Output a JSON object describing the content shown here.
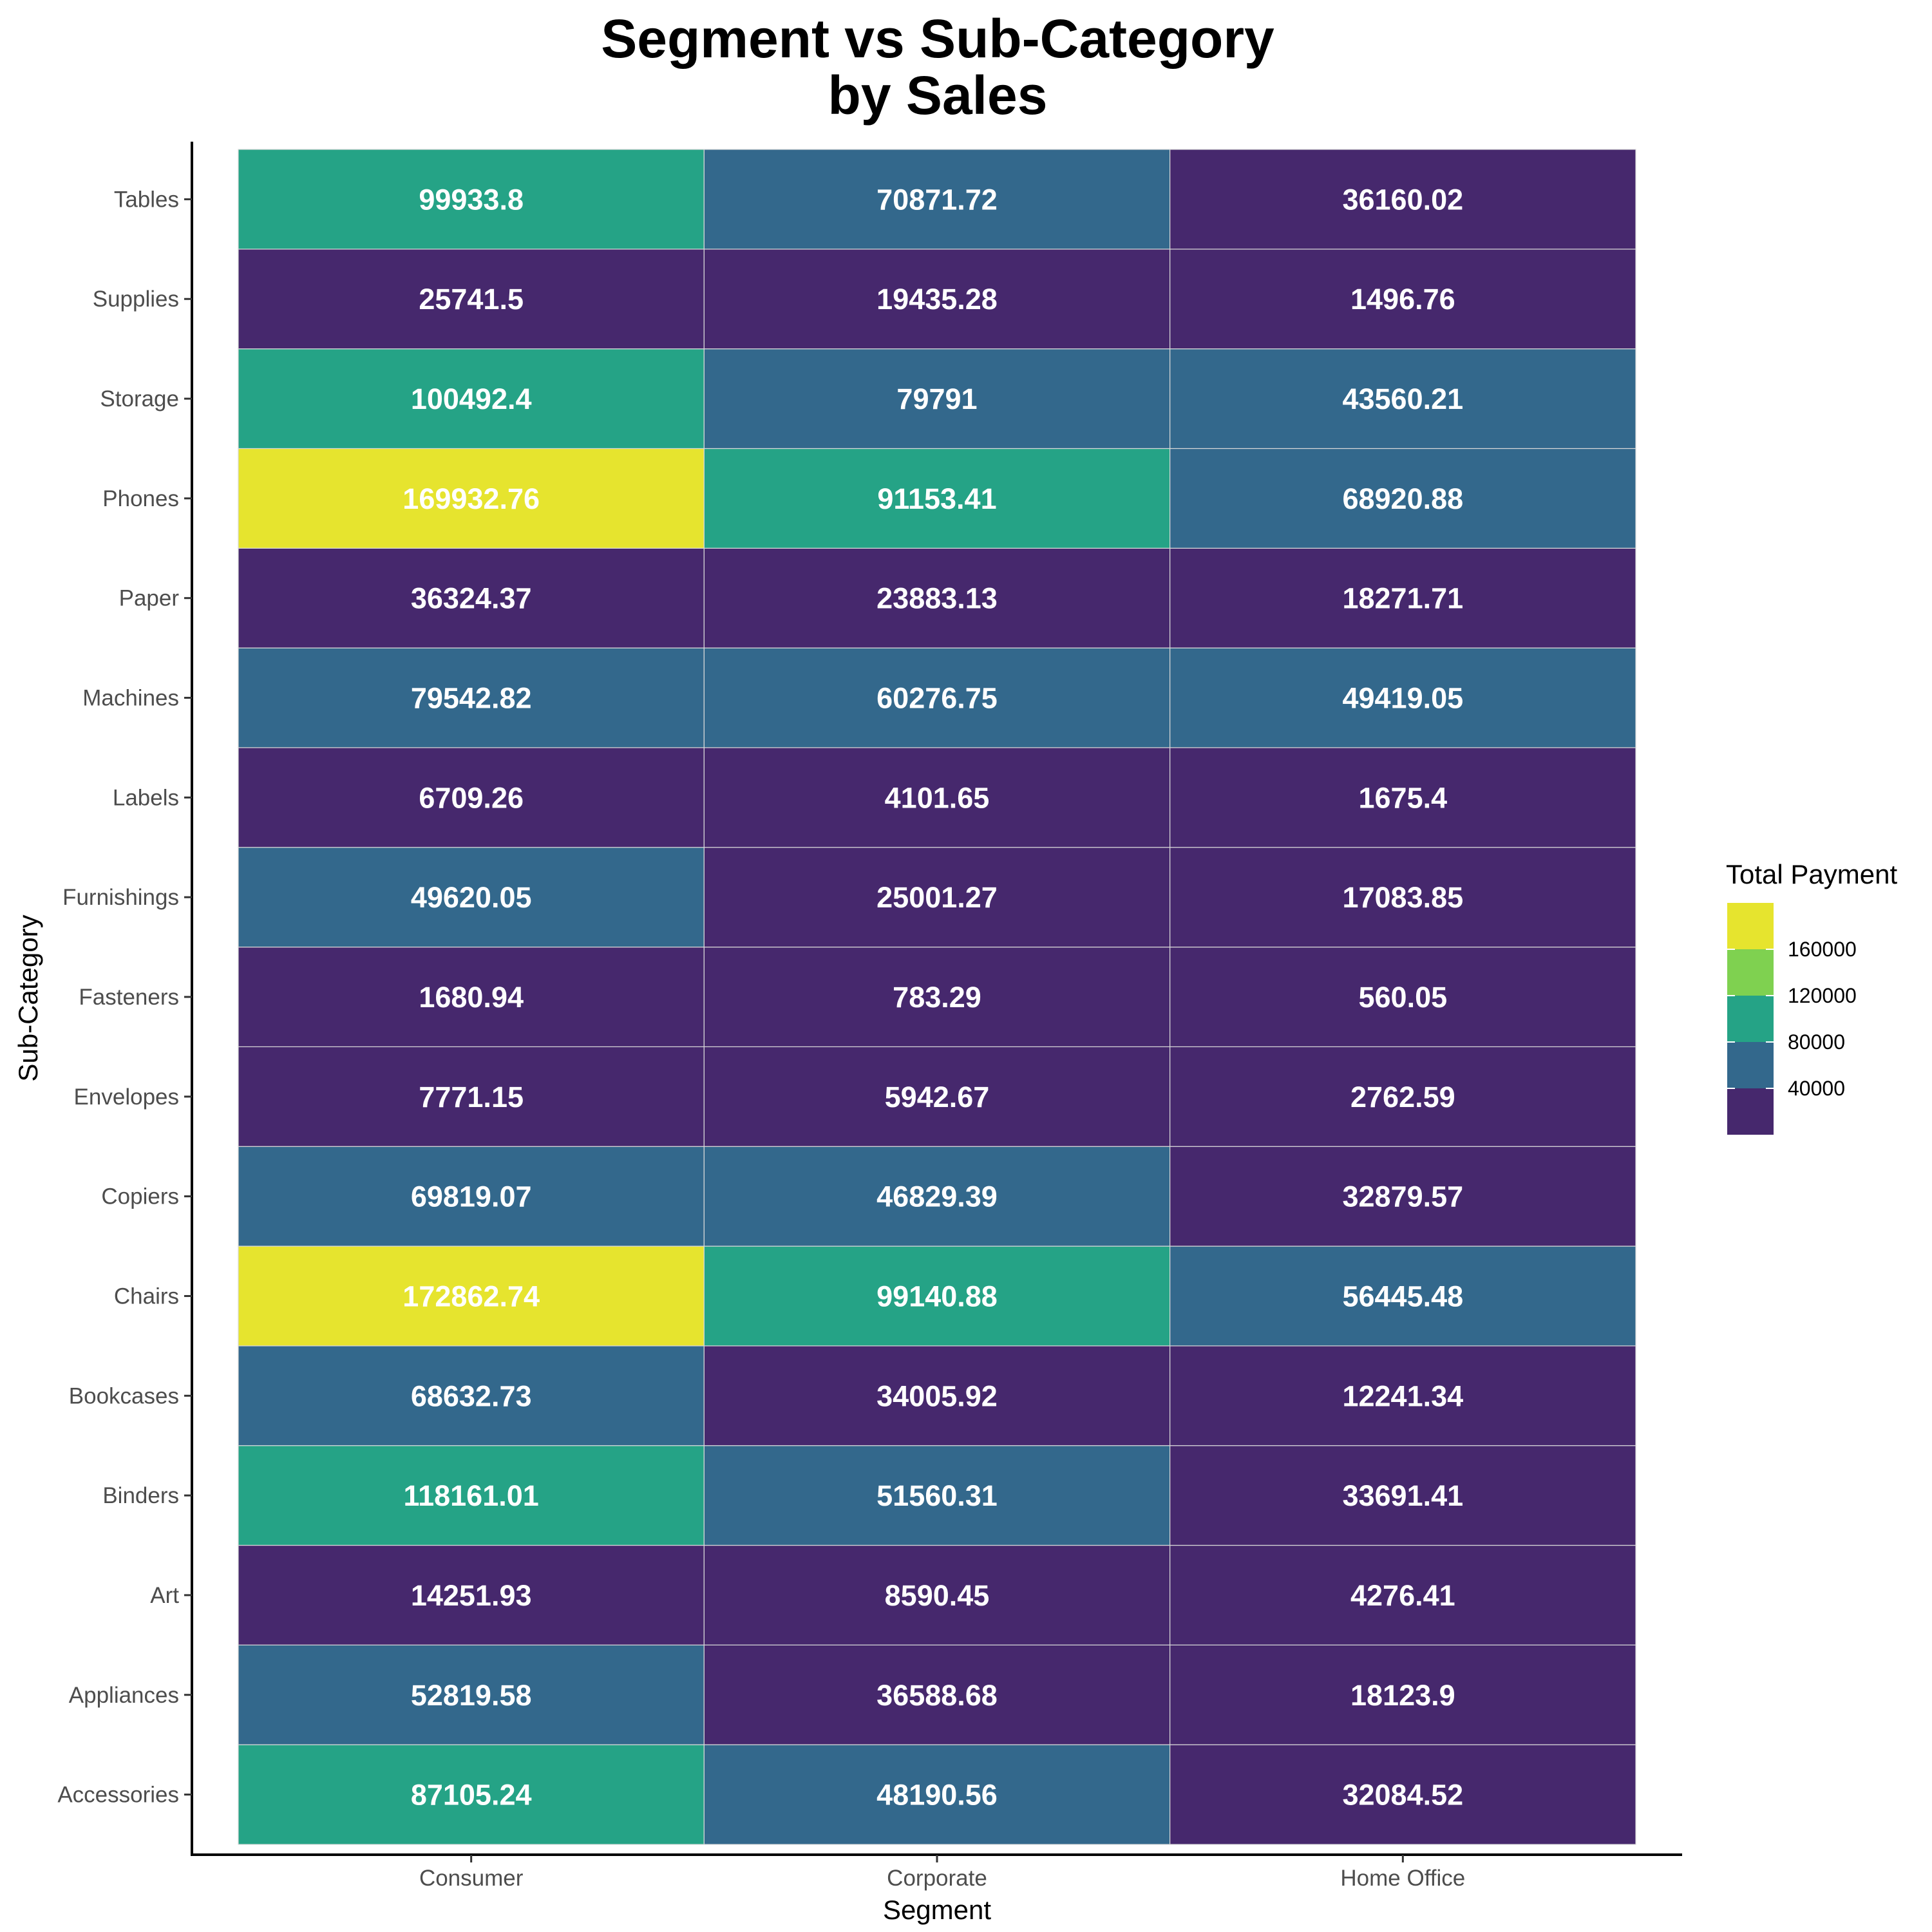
{
  "colors": {
    "bin_0_40000": "#46286d",
    "bin_40000_80000": "#33688c",
    "bin_80000_120000": "#25a386",
    "bin_120000_160000": "#7fd150",
    "bin_160000_plus": "#e6e42e"
  },
  "chart_data": {
    "type": "heatmap",
    "title": "Segment vs Sub-Category\nby Sales",
    "title_lines": [
      "Segment vs Sub-Category",
      "by Sales"
    ],
    "xlabel": "Segment",
    "ylabel": "Sub-Category",
    "x_categories": [
      "Consumer",
      "Corporate",
      "Home Office"
    ],
    "y_categories": [
      "Accessories",
      "Appliances",
      "Art",
      "Binders",
      "Bookcases",
      "Chairs",
      "Copiers",
      "Envelopes",
      "Fasteners",
      "Furnishings",
      "Labels",
      "Machines",
      "Paper",
      "Phones",
      "Storage",
      "Supplies",
      "Tables"
    ],
    "values": [
      [
        87105.24,
        48190.56,
        32084.52
      ],
      [
        52819.58,
        36588.68,
        18123.9
      ],
      [
        14251.93,
        8590.45,
        4276.41
      ],
      [
        118161.01,
        51560.31,
        33691.41
      ],
      [
        68632.73,
        34005.92,
        12241.34
      ],
      [
        172862.74,
        99140.88,
        56445.48
      ],
      [
        69819.07,
        46829.39,
        32879.57
      ],
      [
        7771.15,
        5942.67,
        2762.59
      ],
      [
        1680.94,
        783.29,
        560.05
      ],
      [
        49620.05,
        25001.27,
        17083.85
      ],
      [
        6709.26,
        4101.65,
        1675.4
      ],
      [
        79542.82,
        60276.75,
        49419.05
      ],
      [
        36324.37,
        23883.13,
        18271.71
      ],
      [
        169932.76,
        91153.41,
        68920.88
      ],
      [
        100492.4,
        79791,
        43560.21
      ],
      [
        25741.5,
        19435.28,
        1496.76
      ],
      [
        99933.8,
        70871.72,
        36160.02
      ]
    ],
    "value_labels": [
      [
        "87105.24",
        "48190.56",
        "32084.52"
      ],
      [
        "52819.58",
        "36588.68",
        "18123.9"
      ],
      [
        "14251.93",
        "8590.45",
        "4276.41"
      ],
      [
        "118161.01",
        "51560.31",
        "33691.41"
      ],
      [
        "68632.73",
        "34005.92",
        "12241.34"
      ],
      [
        "172862.74",
        "99140.88",
        "56445.48"
      ],
      [
        "69819.07",
        "46829.39",
        "32879.57"
      ],
      [
        "7771.15",
        "5942.67",
        "2762.59"
      ],
      [
        "1680.94",
        "783.29",
        "560.05"
      ],
      [
        "49620.05",
        "25001.27",
        "17083.85"
      ],
      [
        "6709.26",
        "4101.65",
        "1675.4"
      ],
      [
        "79542.82",
        "60276.75",
        "49419.05"
      ],
      [
        "36324.37",
        "23883.13",
        "18271.71"
      ],
      [
        "169932.76",
        "91153.41",
        "68920.88"
      ],
      [
        "100492.4",
        "79791",
        "43560.21"
      ],
      [
        "25741.5",
        "19435.28",
        "1496.76"
      ],
      [
        "99933.8",
        "70871.72",
        "36160.02"
      ]
    ],
    "legend": {
      "title": "Total Payment",
      "placement": "right",
      "breaks": [
        40000,
        80000,
        120000,
        160000
      ],
      "break_labels": [
        "40000",
        "80000",
        "120000",
        "160000"
      ]
    },
    "grid": false
  }
}
